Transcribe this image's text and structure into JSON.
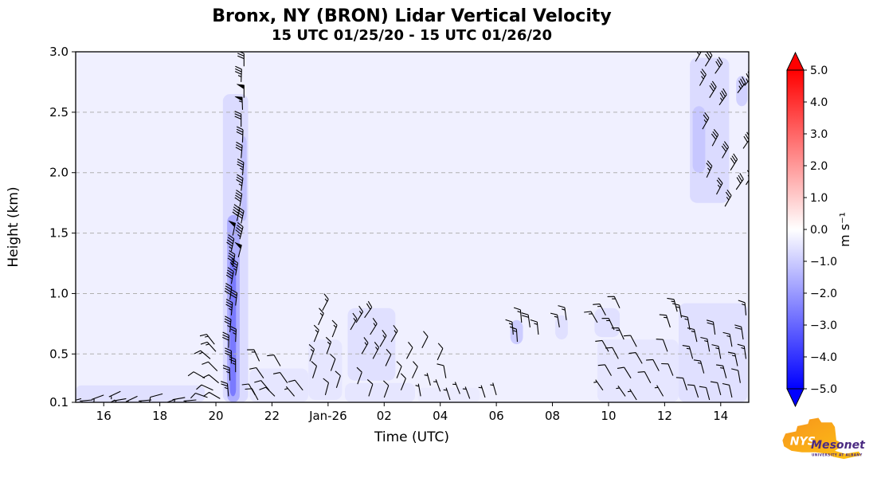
{
  "chart_data": {
    "type": "heatmap",
    "subtype": "time-height lidar vertical velocity with wind barbs",
    "title": "Bronx, NY (BRON) Lidar Vertical Velocity",
    "subtitle": "15 UTC 01/25/20 - 15 UTC 01/26/20",
    "xlabel": "Time (UTC)",
    "ylabel": "Height (km)",
    "x_range": [
      15,
      39
    ],
    "y_range": [
      0.1,
      3.0
    ],
    "x_ticks": [
      {
        "value": 16,
        "label": "16"
      },
      {
        "value": 18,
        "label": "18"
      },
      {
        "value": 20,
        "label": "20"
      },
      {
        "value": 22,
        "label": "22"
      },
      {
        "value": 24,
        "label": "Jan-26"
      },
      {
        "value": 26,
        "label": "02"
      },
      {
        "value": 28,
        "label": "04"
      },
      {
        "value": 30,
        "label": "06"
      },
      {
        "value": 32,
        "label": "08"
      },
      {
        "value": 34,
        "label": "10"
      },
      {
        "value": 36,
        "label": "12"
      },
      {
        "value": 38,
        "label": "14"
      }
    ],
    "y_ticks": [
      {
        "value": 0.1,
        "label": "0.1"
      },
      {
        "value": 0.5,
        "label": "0.5"
      },
      {
        "value": 1.0,
        "label": "1.0"
      },
      {
        "value": 1.5,
        "label": "1.5"
      },
      {
        "value": 2.0,
        "label": "2.0"
      },
      {
        "value": 2.5,
        "label": "2.5"
      },
      {
        "value": 3.0,
        "label": "3.0"
      }
    ],
    "grid_y_dashed": [
      0.5,
      1.0,
      1.5,
      2.0,
      2.5
    ],
    "background_velocity_ms": -0.3,
    "colorbar": {
      "label": "m s⁻¹",
      "min": -5.0,
      "max": 5.0,
      "colormap": "blue-white-red",
      "tick_labels": [
        "5.0",
        "4.0",
        "3.0",
        "2.0",
        "1.0",
        "0.0",
        "−1.0",
        "−2.0",
        "−3.0",
        "−4.0",
        "−5.0"
      ]
    },
    "velocity_patches": [
      [
        15.0,
        0.1,
        19.6,
        0.24,
        -0.6
      ],
      [
        21.2,
        0.1,
        23.3,
        0.38,
        -0.5
      ],
      [
        23.3,
        0.12,
        24.5,
        0.62,
        -0.5
      ],
      [
        24.6,
        0.1,
        27.1,
        0.26,
        -0.5
      ],
      [
        24.7,
        0.28,
        26.4,
        0.88,
        -0.6
      ],
      [
        27.2,
        0.1,
        29.4,
        0.22,
        -0.4
      ],
      [
        30.5,
        0.58,
        30.95,
        0.78,
        -1.0
      ],
      [
        32.1,
        0.62,
        32.55,
        0.82,
        -0.6
      ],
      [
        33.6,
        0.1,
        36.5,
        0.62,
        -0.5
      ],
      [
        33.5,
        0.64,
        34.4,
        0.88,
        -0.6
      ],
      [
        36.9,
        1.75,
        38.3,
        2.95,
        -0.7
      ],
      [
        37.0,
        2.0,
        37.45,
        2.55,
        -1.1
      ],
      [
        38.55,
        2.55,
        38.95,
        2.8,
        -0.9
      ],
      [
        36.5,
        0.1,
        38.95,
        0.92,
        -0.6
      ],
      [
        20.25,
        0.1,
        21.15,
        2.65,
        -0.7
      ],
      [
        20.9,
        1.6,
        21.1,
        2.3,
        -1.2
      ],
      [
        20.4,
        0.1,
        20.85,
        1.65,
        -1.6
      ],
      [
        20.5,
        0.15,
        20.72,
        1.3,
        -2.6
      ]
    ],
    "wind_barbs": {
      "format": [
        "time_utc_hours",
        "height_km",
        "staff_angle_deg",
        "speed_kt"
      ],
      "points": [
        [
          15.2,
          0.13,
          195,
          8
        ],
        [
          15.6,
          0.12,
          185,
          7
        ],
        [
          16.0,
          0.16,
          200,
          9
        ],
        [
          16.4,
          0.12,
          210,
          6
        ],
        [
          16.8,
          0.13,
          190,
          8
        ],
        [
          17.2,
          0.15,
          205,
          7
        ],
        [
          17.7,
          0.12,
          185,
          9
        ],
        [
          18.1,
          0.17,
          195,
          10
        ],
        [
          18.5,
          0.12,
          200,
          7
        ],
        [
          18.9,
          0.14,
          190,
          8
        ],
        [
          19.3,
          0.12,
          185,
          9
        ],
        [
          16.6,
          0.19,
          205,
          6
        ],
        [
          19.6,
          0.3,
          150,
          12
        ],
        [
          19.8,
          0.46,
          140,
          15
        ],
        [
          19.9,
          0.2,
          155,
          10
        ],
        [
          20.0,
          0.52,
          132,
          15
        ],
        [
          20.05,
          0.36,
          135,
          12
        ],
        [
          19.7,
          0.14,
          160,
          10
        ],
        [
          20.1,
          0.26,
          140,
          12
        ],
        [
          19.95,
          0.58,
          128,
          15
        ],
        [
          20.15,
          0.13,
          150,
          10
        ],
        [
          20.45,
          0.15,
          95,
          25
        ],
        [
          20.5,
          0.28,
          92,
          25
        ],
        [
          20.55,
          0.42,
          90,
          30
        ],
        [
          20.45,
          0.55,
          88,
          30
        ],
        [
          20.5,
          0.68,
          85,
          35
        ],
        [
          20.55,
          0.82,
          85,
          35
        ],
        [
          20.5,
          0.95,
          82,
          40
        ],
        [
          20.55,
          1.08,
          80,
          40
        ],
        [
          20.6,
          1.22,
          80,
          45
        ],
        [
          20.55,
          1.35,
          78,
          45
        ],
        [
          20.6,
          1.48,
          78,
          50
        ],
        [
          20.7,
          0.35,
          90,
          25
        ],
        [
          20.7,
          0.6,
          87,
          28
        ],
        [
          20.7,
          0.9,
          83,
          30
        ],
        [
          20.7,
          1.15,
          80,
          35
        ],
        [
          20.75,
          1.6,
          77,
          40
        ],
        [
          20.8,
          1.3,
          75,
          50
        ],
        [
          20.85,
          1.45,
          75,
          45
        ],
        [
          20.9,
          1.58,
          78,
          40
        ],
        [
          20.85,
          1.72,
          80,
          40
        ],
        [
          20.9,
          1.85,
          82,
          35
        ],
        [
          20.95,
          1.98,
          85,
          35
        ],
        [
          20.9,
          2.12,
          85,
          30
        ],
        [
          20.95,
          2.25,
          88,
          30
        ],
        [
          20.9,
          2.38,
          90,
          30
        ],
        [
          20.95,
          2.52,
          92,
          55
        ],
        [
          21.0,
          2.62,
          90,
          50
        ],
        [
          20.9,
          2.75,
          88,
          35
        ],
        [
          21.0,
          2.88,
          90,
          30
        ],
        [
          21.4,
          0.16,
          120,
          12
        ],
        [
          21.55,
          0.44,
          115,
          15
        ],
        [
          21.7,
          0.3,
          125,
          12
        ],
        [
          21.9,
          0.2,
          130,
          10
        ],
        [
          22.1,
          0.15,
          135,
          10
        ],
        [
          22.3,
          0.4,
          120,
          12
        ],
        [
          22.55,
          0.26,
          125,
          10
        ],
        [
          22.8,
          0.15,
          130,
          8
        ],
        [
          23.1,
          0.2,
          128,
          10
        ],
        [
          21.5,
          0.12,
          118,
          10
        ],
        [
          23.35,
          0.44,
          70,
          15
        ],
        [
          23.5,
          0.6,
          68,
          15
        ],
        [
          23.65,
          0.74,
          65,
          18
        ],
        [
          23.8,
          0.86,
          62,
          18
        ],
        [
          23.45,
          0.3,
          72,
          12
        ],
        [
          23.95,
          0.5,
          70,
          15
        ],
        [
          24.15,
          0.64,
          68,
          15
        ],
        [
          23.9,
          0.16,
          75,
          10
        ],
        [
          24.3,
          0.22,
          72,
          10
        ],
        [
          24.1,
          0.36,
          70,
          12
        ],
        [
          24.8,
          0.7,
          60,
          18
        ],
        [
          25.0,
          0.76,
          58,
          18
        ],
        [
          25.3,
          0.8,
          55,
          20
        ],
        [
          25.5,
          0.66,
          58,
          18
        ],
        [
          25.2,
          0.5,
          60,
          15
        ],
        [
          25.6,
          0.46,
          62,
          15
        ],
        [
          25.85,
          0.56,
          60,
          15
        ],
        [
          26.05,
          0.4,
          65,
          12
        ],
        [
          26.25,
          0.6,
          60,
          15
        ],
        [
          26.45,
          0.3,
          68,
          12
        ],
        [
          25.05,
          0.25,
          70,
          10
        ],
        [
          25.45,
          0.15,
          72,
          10
        ],
        [
          26.0,
          0.14,
          70,
          10
        ],
        [
          26.6,
          0.2,
          68,
          10
        ],
        [
          26.8,
          0.46,
          62,
          12
        ],
        [
          27.0,
          0.3,
          65,
          10
        ],
        [
          27.35,
          0.55,
          63,
          12
        ],
        [
          27.9,
          0.45,
          65,
          12
        ],
        [
          28.2,
          0.3,
          100,
          10
        ],
        [
          27.3,
          0.15,
          100,
          8
        ],
        [
          27.65,
          0.24,
          105,
          8
        ],
        [
          28.0,
          0.19,
          110,
          8
        ],
        [
          28.35,
          0.12,
          108,
          7
        ],
        [
          28.7,
          0.17,
          112,
          8
        ],
        [
          29.05,
          0.13,
          110,
          7
        ],
        [
          29.6,
          0.14,
          108,
          7
        ],
        [
          30.0,
          0.16,
          106,
          7
        ],
        [
          30.6,
          0.66,
          95,
          18
        ],
        [
          30.9,
          0.76,
          95,
          18
        ],
        [
          31.2,
          0.72,
          98,
          20
        ],
        [
          31.5,
          0.66,
          96,
          18
        ],
        [
          30.75,
          0.6,
          94,
          15
        ],
        [
          32.25,
          0.72,
          100,
          15
        ],
        [
          32.5,
          0.78,
          98,
          15
        ],
        [
          33.6,
          0.76,
          120,
          15
        ],
        [
          33.9,
          0.82,
          118,
          15
        ],
        [
          34.2,
          0.7,
          115,
          18
        ],
        [
          34.0,
          0.52,
          120,
          12
        ],
        [
          34.35,
          0.46,
          118,
          12
        ],
        [
          34.55,
          0.62,
          115,
          15
        ],
        [
          34.8,
          0.3,
          122,
          10
        ],
        [
          35.0,
          0.56,
          118,
          12
        ],
        [
          35.2,
          0.42,
          120,
          12
        ],
        [
          35.5,
          0.26,
          118,
          10
        ],
        [
          34.6,
          0.15,
          125,
          8
        ],
        [
          35.0,
          0.12,
          122,
          8
        ],
        [
          35.8,
          0.36,
          118,
          10
        ],
        [
          33.8,
          0.2,
          125,
          8
        ],
        [
          34.1,
          0.32,
          120,
          10
        ],
        [
          35.95,
          0.15,
          120,
          8
        ],
        [
          36.1,
          0.52,
          110,
          12
        ],
        [
          36.3,
          0.32,
          112,
          12
        ],
        [
          36.2,
          0.72,
          108,
          15
        ],
        [
          36.45,
          0.85,
          105,
          15
        ],
        [
          34.4,
          0.88,
          115,
          15
        ],
        [
          37.1,
          2.92,
          60,
          25
        ],
        [
          37.45,
          2.88,
          58,
          30
        ],
        [
          37.8,
          2.82,
          55,
          30
        ],
        [
          37.25,
          2.72,
          60,
          25
        ],
        [
          37.6,
          2.62,
          58,
          30
        ],
        [
          37.95,
          2.56,
          55,
          35
        ],
        [
          37.35,
          2.36,
          60,
          25
        ],
        [
          37.7,
          2.22,
          62,
          30
        ],
        [
          38.05,
          2.12,
          60,
          30
        ],
        [
          37.5,
          1.96,
          65,
          25
        ],
        [
          37.85,
          1.82,
          62,
          25
        ],
        [
          38.15,
          1.72,
          60,
          25
        ],
        [
          38.35,
          2.02,
          58,
          30
        ],
        [
          38.55,
          1.86,
          55,
          30
        ],
        [
          38.6,
          2.66,
          52,
          35
        ],
        [
          38.85,
          2.72,
          50,
          35
        ],
        [
          38.8,
          2.2,
          55,
          30
        ],
        [
          38.9,
          1.9,
          58,
          25
        ],
        [
          36.6,
          0.8,
          100,
          15
        ],
        [
          36.9,
          0.7,
          100,
          18
        ],
        [
          37.15,
          0.6,
          102,
          18
        ],
        [
          37.0,
          0.46,
          105,
          15
        ],
        [
          37.4,
          0.34,
          105,
          15
        ],
        [
          37.6,
          0.52,
          100,
          18
        ],
        [
          37.8,
          0.66,
          98,
          20
        ],
        [
          38.0,
          0.46,
          100,
          18
        ],
        [
          38.2,
          0.3,
          105,
          15
        ],
        [
          38.4,
          0.56,
          100,
          18
        ],
        [
          38.6,
          0.4,
          102,
          18
        ],
        [
          38.8,
          0.62,
          98,
          20
        ],
        [
          36.8,
          0.2,
          108,
          10
        ],
        [
          37.2,
          0.14,
          108,
          10
        ],
        [
          37.6,
          0.12,
          105,
          10
        ],
        [
          38.0,
          0.16,
          105,
          12
        ],
        [
          38.4,
          0.14,
          102,
          12
        ],
        [
          38.7,
          0.26,
          100,
          12
        ],
        [
          38.9,
          0.46,
          98,
          15
        ],
        [
          38.9,
          0.82,
          95,
          18
        ]
      ]
    }
  },
  "logo": {
    "nys": "NYS",
    "mesonet": "Mesonet",
    "tagline": "UNIVERSITY AT ALBANY"
  }
}
